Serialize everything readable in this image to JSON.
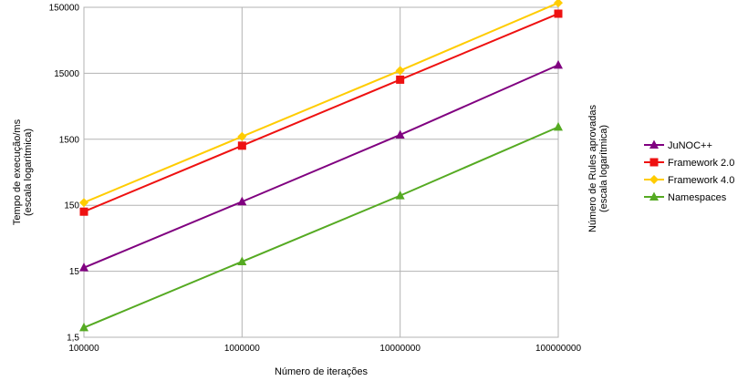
{
  "chart_data": {
    "type": "line",
    "title": "",
    "xlabel": "Número de iterações",
    "ylabel": "Tempo de execução/ms",
    "ylabel_sub": "(escala logarítmica)",
    "y2label": "Número de Rules aprovadas",
    "y2label_sub": "(escala logarítmica)",
    "x_scale": "log",
    "y_scale": "log",
    "x": [
      100000,
      1000000,
      10000000,
      100000000
    ],
    "x_tick_labels": [
      "100000",
      "1000000",
      "10000000",
      "100000000"
    ],
    "y_ticks": [
      1.5,
      15,
      150,
      1500,
      15000,
      150000
    ],
    "y_tick_labels": [
      "1,5",
      "15",
      "150",
      "1500",
      "15000",
      "150000"
    ],
    "ylim": [
      1.5,
      150000
    ],
    "xlim": [
      100000,
      100000000
    ],
    "grid": true,
    "legend_position": "right",
    "series": [
      {
        "name": "JuNOC++",
        "color": "#800080",
        "marker": "triangle",
        "values": [
          17,
          170,
          1750,
          20000
        ]
      },
      {
        "name": "Framework 2.0",
        "color": "#ee1111",
        "marker": "square",
        "values": [
          120,
          1200,
          12000,
          120000
        ]
      },
      {
        "name": "Framework 4.0",
        "color": "#ffcc00",
        "marker": "diamond",
        "values": [
          165,
          1650,
          16500,
          175000
        ]
      },
      {
        "name": "Namespaces",
        "color": "#55aa22",
        "marker": "triangle",
        "values": [
          2.1,
          21,
          210,
          2300
        ]
      }
    ]
  }
}
